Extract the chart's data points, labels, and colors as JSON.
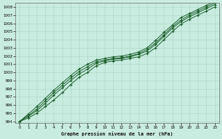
{
  "title": "Graphe pression niveau de la mer (hPa)",
  "bg_color": "#c8ece0",
  "grid_color": "#a8d4c0",
  "line_color": "#1a5c28",
  "xlim": [
    -0.5,
    23.5
  ],
  "ylim": [
    993.8,
    1008.5
  ],
  "yticks": [
    994,
    995,
    996,
    997,
    998,
    999,
    1000,
    1001,
    1002,
    1003,
    1004,
    1005,
    1006,
    1007,
    1008
  ],
  "xticks": [
    0,
    1,
    2,
    3,
    4,
    5,
    6,
    7,
    8,
    9,
    10,
    11,
    12,
    13,
    14,
    15,
    16,
    17,
    18,
    19,
    20,
    21,
    22,
    23
  ],
  "series": [
    [
      994.0,
      994.4,
      995.0,
      995.8,
      996.6,
      997.5,
      998.5,
      999.4,
      1000.0,
      1000.8,
      1001.2,
      1001.4,
      1001.5,
      1001.7,
      1001.9,
      1002.3,
      1003.0,
      1004.0,
      1005.0,
      1005.9,
      1006.5,
      1007.0,
      1007.5,
      1008.0
    ],
    [
      994.0,
      994.6,
      995.3,
      996.2,
      997.2,
      998.1,
      999.0,
      999.8,
      1000.4,
      1001.1,
      1001.4,
      1001.6,
      1001.7,
      1001.9,
      1002.2,
      1002.6,
      1003.4,
      1004.4,
      1005.4,
      1006.2,
      1006.8,
      1007.3,
      1007.8,
      1008.3
    ],
    [
      994.0,
      994.9,
      995.8,
      996.8,
      997.8,
      998.7,
      999.6,
      1000.4,
      1001.0,
      1001.5,
      1001.7,
      1001.9,
      1002.0,
      1002.2,
      1002.5,
      1003.0,
      1003.9,
      1004.9,
      1005.8,
      1006.7,
      1007.2,
      1007.7,
      1008.2,
      1008.7
    ],
    [
      994.0,
      994.7,
      995.5,
      996.5,
      997.5,
      998.4,
      999.3,
      1000.1,
      1000.7,
      1001.3,
      1001.5,
      1001.7,
      1001.8,
      1002.0,
      1002.3,
      1002.8,
      1003.6,
      1004.6,
      1005.6,
      1006.4,
      1007.0,
      1007.5,
      1008.0,
      1008.5
    ]
  ]
}
